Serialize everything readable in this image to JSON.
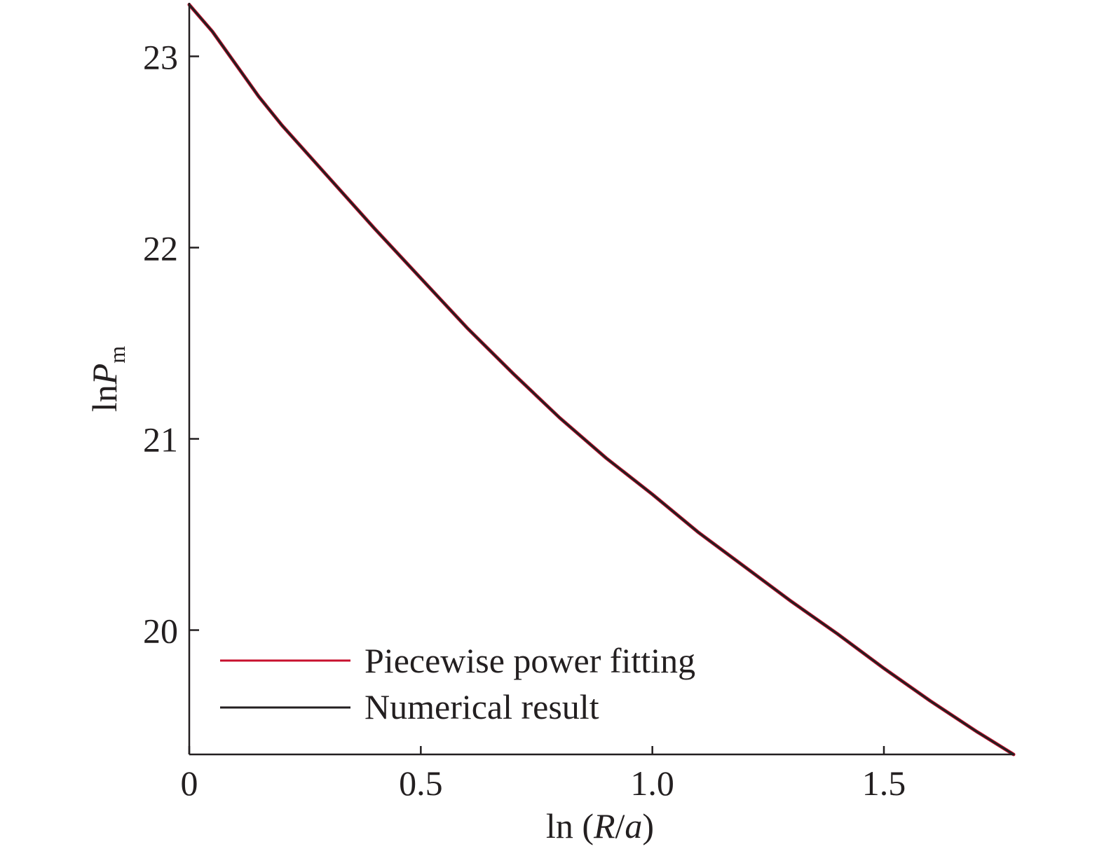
{
  "chart_data": {
    "type": "line",
    "title": "",
    "xlabel": {
      "prefix": "ln (",
      "var": "R",
      "sep": "/",
      "var2": "a",
      "suffix": ")"
    },
    "ylabel": {
      "prefix": "ln",
      "var": "P",
      "sub": "m"
    },
    "xlim": [
      0,
      1.78
    ],
    "ylim": [
      19.35,
      23.28
    ],
    "xticks": [
      {
        "value": 0,
        "label": "0"
      },
      {
        "value": 0.5,
        "label": "0.5"
      },
      {
        "value": 1.0,
        "label": "1.0"
      },
      {
        "value": 1.5,
        "label": "1.5"
      }
    ],
    "yticks": [
      {
        "value": 20,
        "label": "20"
      },
      {
        "value": 21,
        "label": "21"
      },
      {
        "value": 22,
        "label": "22"
      },
      {
        "value": 23,
        "label": "23"
      }
    ],
    "grid": false,
    "legend_position": "bottom-left",
    "series": [
      {
        "name": "Piecewise power fitting",
        "color": "#c8102e",
        "x": [
          0,
          0.05,
          0.1,
          0.15,
          0.2,
          0.3,
          0.4,
          0.5,
          0.6,
          0.7,
          0.8,
          0.9,
          1.0,
          1.1,
          1.2,
          1.3,
          1.4,
          1.5,
          1.6,
          1.7,
          1.78
        ],
        "y": [
          23.27,
          23.13,
          22.96,
          22.79,
          22.64,
          22.37,
          22.1,
          21.84,
          21.58,
          21.34,
          21.11,
          20.9,
          20.71,
          20.51,
          20.33,
          20.15,
          19.98,
          19.8,
          19.63,
          19.47,
          19.35
        ]
      },
      {
        "name": "Numerical result",
        "color": "#231f20",
        "x": [
          0,
          0.05,
          0.1,
          0.15,
          0.2,
          0.3,
          0.4,
          0.5,
          0.6,
          0.7,
          0.8,
          0.9,
          1.0,
          1.1,
          1.2,
          1.3,
          1.4,
          1.5,
          1.6,
          1.7,
          1.78
        ],
        "y": [
          23.27,
          23.13,
          22.96,
          22.79,
          22.64,
          22.37,
          22.1,
          21.84,
          21.58,
          21.34,
          21.11,
          20.9,
          20.71,
          20.51,
          20.33,
          20.15,
          19.98,
          19.8,
          19.63,
          19.47,
          19.35
        ]
      }
    ]
  }
}
